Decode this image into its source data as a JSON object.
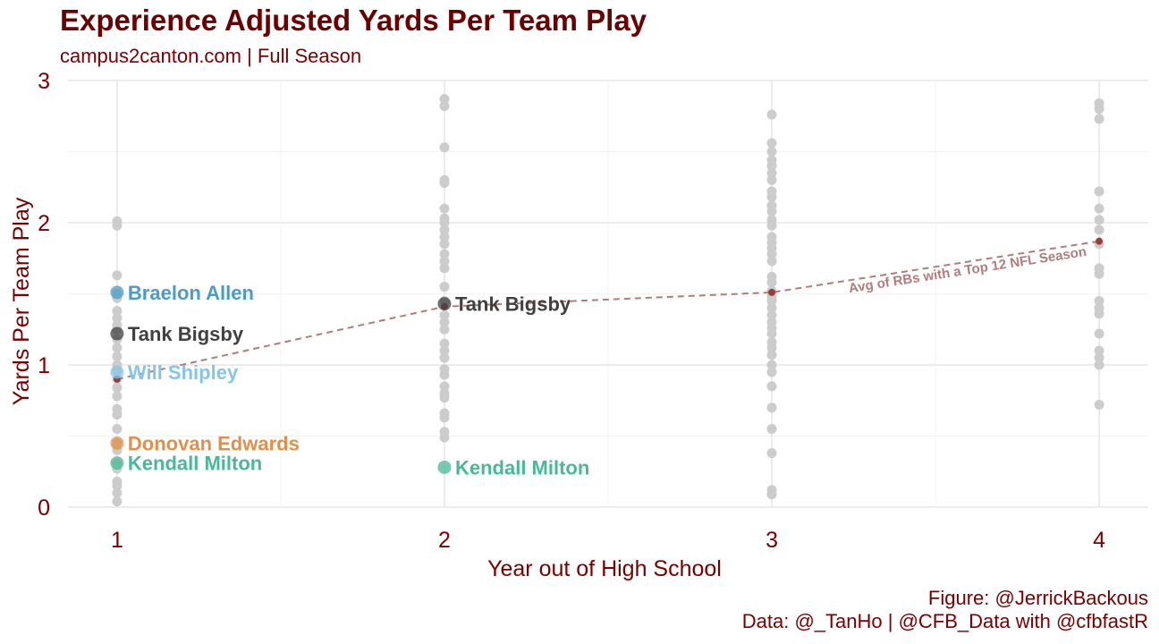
{
  "chart_data": {
    "type": "scatter",
    "title": "Experience Adjusted Yards Per Team Play",
    "subtitle": "campus2canton.com | Full Season",
    "xlabel": "Year out of High School",
    "ylabel": "Yards Per Team Play",
    "xlim": [
      0.85,
      4.15
    ],
    "ylim": [
      0,
      3
    ],
    "xticks": [
      "1",
      "2",
      "3",
      "4"
    ],
    "yticks": [
      "0",
      "1",
      "2",
      "3"
    ],
    "grid": true,
    "caption_lines": [
      "Figure: @JerrickBackous",
      "Data: @_TanHo | @CFB_Data with @cfbfastR"
    ],
    "background_points": [
      {
        "x": 1,
        "y": [
          2.01,
          1.98,
          1.63,
          1.5,
          1.47,
          1.38,
          1.33,
          1.28,
          1.25,
          1.18,
          1.12,
          1.06,
          1.0,
          0.96,
          0.9,
          0.84,
          0.78,
          0.69,
          0.65,
          0.55,
          0.45,
          0.4,
          0.31,
          0.27,
          0.18,
          0.15,
          0.1,
          0.04
        ]
      },
      {
        "x": 2,
        "y": [
          2.87,
          2.82,
          2.53,
          2.3,
          2.28,
          2.1,
          2.03,
          2.0,
          1.95,
          1.9,
          1.85,
          1.78,
          1.73,
          1.68,
          1.55,
          1.45,
          1.35,
          1.3,
          1.25,
          1.15,
          1.1,
          1.05,
          0.97,
          0.93,
          0.85,
          0.8,
          0.77,
          0.66,
          0.63,
          0.53,
          0.49
        ]
      },
      {
        "x": 3,
        "y": [
          2.76,
          2.56,
          2.5,
          2.44,
          2.4,
          2.35,
          2.3,
          2.22,
          2.18,
          2.12,
          2.08,
          2.02,
          1.98,
          1.9,
          1.86,
          1.82,
          1.78,
          1.73,
          1.62,
          1.58,
          1.52,
          1.48,
          1.45,
          1.4,
          1.35,
          1.3,
          1.26,
          1.22,
          1.16,
          1.12,
          1.07,
          1.0,
          0.95,
          0.85,
          0.7,
          0.55,
          0.38,
          0.12,
          0.09
        ]
      },
      {
        "x": 4,
        "y": [
          2.84,
          2.8,
          2.73,
          2.22,
          2.1,
          2.02,
          1.95,
          1.85,
          1.68,
          1.64,
          1.45,
          1.4,
          1.36,
          1.22,
          1.1,
          1.05,
          1.0,
          0.72
        ]
      }
    ],
    "trend": {
      "label": "Avg of RBs with a Top 12 NFL Season",
      "color": "#b07c7c",
      "points": [
        {
          "x": 1,
          "y": 0.9
        },
        {
          "x": 2,
          "y": 1.41
        },
        {
          "x": 3,
          "y": 1.51
        },
        {
          "x": 4,
          "y": 1.87
        }
      ]
    },
    "highlighted": [
      {
        "name": "Braelon Allen",
        "x": 1,
        "y": 1.51,
        "color": "#4a9cc8"
      },
      {
        "name": "Tank Bigsby",
        "x": 1,
        "y": 1.22,
        "color": "#404040"
      },
      {
        "name": "Will Shipley",
        "x": 1,
        "y": 0.95,
        "color": "#86c5e8"
      },
      {
        "name": "Donovan Edwards",
        "x": 1,
        "y": 0.45,
        "color": "#e0904a"
      },
      {
        "name": "Kendall Milton",
        "x": 1,
        "y": 0.31,
        "color": "#4ab896"
      },
      {
        "name": "Tank Bigsby",
        "x": 2,
        "y": 1.43,
        "color": "#404040"
      },
      {
        "name": "Kendall Milton",
        "x": 2,
        "y": 0.28,
        "color": "#4ab896"
      }
    ]
  }
}
